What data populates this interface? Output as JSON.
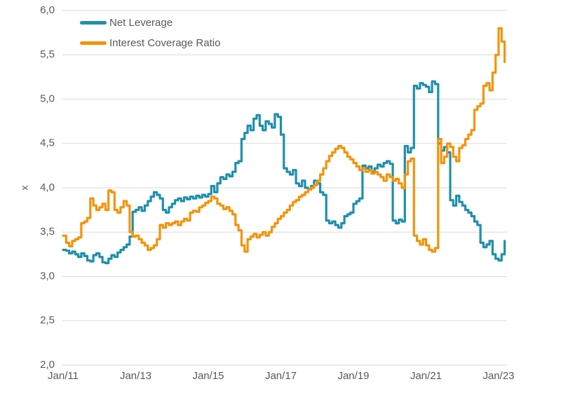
{
  "chart_data": {
    "type": "line",
    "title": "",
    "unit_label": "x",
    "legend_position": "top-left-inside",
    "grid": "horizontal-only",
    "colors": {
      "grid": "#D9D9D9",
      "text": "#595959",
      "background": "#FFFFFF"
    },
    "y_axis": {
      "label": "x",
      "min": 2.0,
      "max": 6.0,
      "step": 0.5,
      "tick_values": [
        6.0,
        5.5,
        5.0,
        4.5,
        4.0,
        3.5,
        3.0,
        2.5,
        2.0
      ],
      "tick_labels": [
        "6,0",
        "5,5",
        "5,0",
        "4,5",
        "4,0",
        "3,5",
        "3,0",
        "2,5",
        "2,0"
      ]
    },
    "x_axis": {
      "tick_labels": [
        "Jan/11",
        "Jan/13",
        "Jan/15",
        "Jan/17",
        "Jan/19",
        "Jan/21",
        "Jan/23"
      ],
      "start": "2011-01",
      "end": "2023-03",
      "frequency": "monthly",
      "months_per_tick": 24
    },
    "series": [
      {
        "name": "Net Leverage",
        "color": "#1E8FAD",
        "start": "2011-01",
        "frequency": "monthly",
        "values": [
          3.3,
          3.29,
          3.26,
          3.28,
          3.25,
          3.22,
          3.26,
          3.23,
          3.18,
          3.17,
          3.24,
          3.26,
          3.22,
          3.16,
          3.15,
          3.2,
          3.24,
          3.22,
          3.27,
          3.3,
          3.33,
          3.36,
          3.45,
          3.73,
          3.75,
          3.78,
          3.74,
          3.8,
          3.85,
          3.9,
          3.95,
          3.92,
          3.88,
          3.75,
          3.72,
          3.78,
          3.82,
          3.86,
          3.88,
          3.85,
          3.89,
          3.87,
          3.9,
          3.88,
          3.91,
          3.89,
          3.92,
          3.9,
          3.93,
          4.02,
          3.95,
          4.05,
          4.12,
          4.1,
          4.15,
          4.13,
          4.18,
          4.28,
          4.3,
          4.55,
          4.62,
          4.7,
          4.65,
          4.78,
          4.82,
          4.7,
          4.65,
          4.75,
          4.72,
          4.68,
          4.83,
          4.8,
          4.6,
          4.22,
          4.18,
          4.15,
          4.2,
          4.05,
          4.02,
          4.08,
          4.0,
          3.98,
          4.02,
          4.08,
          4.05,
          3.95,
          3.92,
          3.63,
          3.6,
          3.62,
          3.58,
          3.55,
          3.6,
          3.68,
          3.7,
          3.72,
          3.82,
          3.85,
          3.88,
          4.25,
          4.22,
          4.24,
          4.18,
          4.22,
          4.26,
          4.24,
          4.28,
          4.3,
          4.27,
          3.63,
          3.6,
          3.64,
          3.62,
          4.47,
          4.4,
          4.45,
          5.15,
          5.12,
          5.18,
          5.16,
          5.14,
          5.08,
          5.2,
          5.17,
          4.5,
          4.42,
          4.46,
          4.4,
          3.86,
          3.8,
          3.91,
          3.84,
          3.8,
          3.75,
          3.72,
          3.68,
          3.62,
          3.58,
          3.38,
          3.33,
          3.36,
          3.4,
          3.25,
          3.2,
          3.18,
          3.25,
          3.4
        ]
      },
      {
        "name": "Interest Coverage Ratio",
        "color": "#F49307",
        "start": "2011-01",
        "frequency": "monthly",
        "values": [
          3.46,
          3.38,
          3.34,
          3.4,
          3.42,
          3.44,
          3.6,
          3.62,
          3.66,
          3.88,
          3.8,
          3.75,
          3.78,
          3.82,
          3.75,
          3.97,
          3.95,
          3.75,
          3.72,
          3.78,
          3.85,
          3.8,
          3.5,
          3.45,
          3.46,
          3.42,
          3.38,
          3.35,
          3.3,
          3.32,
          3.35,
          3.42,
          3.58,
          3.55,
          3.6,
          3.58,
          3.6,
          3.62,
          3.58,
          3.62,
          3.65,
          3.63,
          3.72,
          3.74,
          3.73,
          3.78,
          3.8,
          3.83,
          3.85,
          3.9,
          3.88,
          3.82,
          3.8,
          3.76,
          3.78,
          3.74,
          3.7,
          3.58,
          3.52,
          3.35,
          3.28,
          3.42,
          3.45,
          3.48,
          3.44,
          3.47,
          3.5,
          3.46,
          3.5,
          3.56,
          3.6,
          3.65,
          3.68,
          3.72,
          3.75,
          3.8,
          3.84,
          3.86,
          3.9,
          3.92,
          3.95,
          3.98,
          4.0,
          4.03,
          4.08,
          4.15,
          4.22,
          4.3,
          4.36,
          4.4,
          4.44,
          4.47,
          4.45,
          4.4,
          4.35,
          4.32,
          4.28,
          4.24,
          4.2,
          4.22,
          4.18,
          4.2,
          4.16,
          4.18,
          4.15,
          4.12,
          4.08,
          4.15,
          4.12,
          4.08,
          4.1,
          4.05,
          4.0,
          4.15,
          4.3,
          4.33,
          3.46,
          3.4,
          3.36,
          3.42,
          3.35,
          3.3,
          3.28,
          3.32,
          4.55,
          4.28,
          4.35,
          4.5,
          4.46,
          4.35,
          4.3,
          4.45,
          4.48,
          4.55,
          4.6,
          4.65,
          4.88,
          4.92,
          4.95,
          5.15,
          5.18,
          5.1,
          5.3,
          5.5,
          5.8,
          5.65,
          5.42
        ]
      }
    ]
  }
}
